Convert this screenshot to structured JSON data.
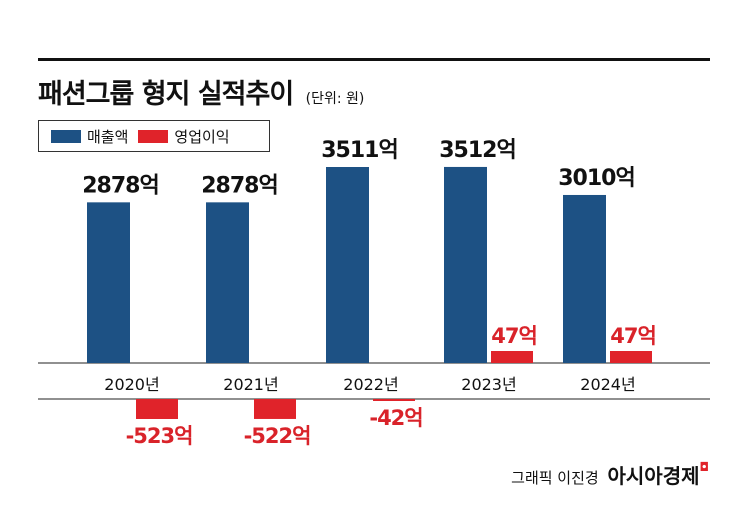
{
  "header": {
    "title": "패션그룹 형지 실적추이",
    "unit": "(단위: 원)"
  },
  "legend": {
    "revenue_label": "매출액",
    "profit_label": "영업이익"
  },
  "credit": {
    "author": "그래픽 이진경",
    "brand": "아시아경제"
  },
  "colors": {
    "revenue": "#1d5184",
    "profit": "#e0232a",
    "profit_label": "#d9232a"
  },
  "chart_data": {
    "type": "bar",
    "title": "패션그룹 형지 실적추이",
    "subtitle": "(단위: 원)",
    "categories": [
      "2020년",
      "2021년",
      "2022년",
      "2023년",
      "2024년"
    ],
    "series": [
      {
        "name": "매출액",
        "values": [
          2878,
          2878,
          3511,
          3512,
          3010
        ],
        "labels": [
          "2878억",
          "2878억",
          "3511억",
          "3512억",
          "3010억"
        ]
      },
      {
        "name": "영업이익",
        "values": [
          -523,
          -522,
          -42,
          47,
          47
        ],
        "labels": [
          "-523억",
          "-522억",
          "-42억",
          "47억",
          "47억"
        ]
      }
    ],
    "legend_position": "top-left",
    "grid": false
  }
}
